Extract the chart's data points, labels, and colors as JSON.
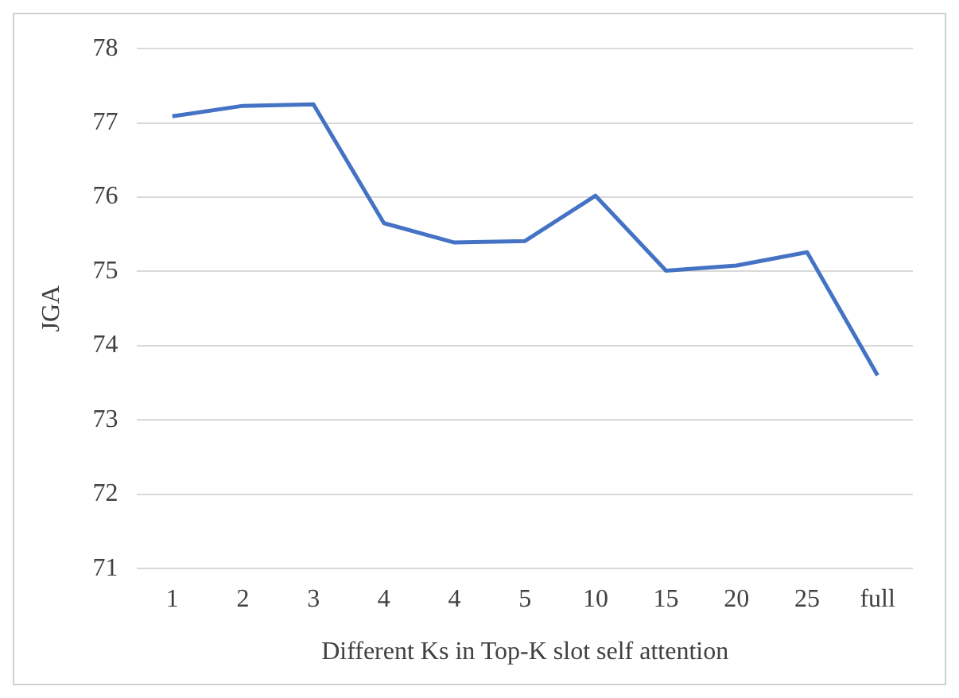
{
  "chart_data": {
    "type": "line",
    "xlabel": "Different Ks in Top-K slot self attention",
    "ylabel": "JGA",
    "categories": [
      "1",
      "2",
      "3",
      "4",
      "4",
      "5",
      "10",
      "15",
      "20",
      "25",
      "full"
    ],
    "series": [
      {
        "color": "#4472c4",
        "values": [
          77.09,
          77.23,
          77.25,
          75.65,
          75.39,
          75.41,
          76.02,
          75.01,
          75.08,
          75.26,
          73.6
        ]
      }
    ],
    "ylim": [
      71,
      78
    ],
    "yticks": [
      71,
      72,
      73,
      74,
      75,
      76,
      77,
      78
    ],
    "grid": "y",
    "legend": false,
    "marker": "none",
    "line_style": "solid"
  }
}
